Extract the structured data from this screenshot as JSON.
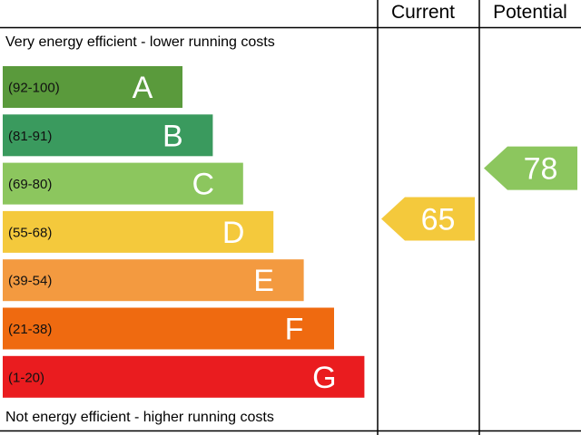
{
  "headers": {
    "current": "Current",
    "potential": "Potential"
  },
  "captions": {
    "top": "Very energy efficient - lower running costs",
    "bottom": "Not energy efficient - higher running costs"
  },
  "chart_data": {
    "type": "bar",
    "bands": [
      {
        "letter": "A",
        "range": "(92-100)",
        "min": 92,
        "max": 100,
        "color": "#5a9a3c"
      },
      {
        "letter": "B",
        "range": "(81-91)",
        "min": 81,
        "max": 91,
        "color": "#3a9a5e"
      },
      {
        "letter": "C",
        "range": "(69-80)",
        "min": 69,
        "max": 80,
        "color": "#8cc65e"
      },
      {
        "letter": "D",
        "range": "(55-68)",
        "min": 55,
        "max": 68,
        "color": "#f4c93c"
      },
      {
        "letter": "E",
        "range": "(39-54)",
        "min": 39,
        "max": 54,
        "color": "#f39a40"
      },
      {
        "letter": "F",
        "range": "(21-38)",
        "min": 21,
        "max": 38,
        "color": "#ef6a10"
      },
      {
        "letter": "G",
        "range": "(1-20)",
        "min": 1,
        "max": 20,
        "color": "#ea1c1f"
      }
    ],
    "current": {
      "value": 65,
      "band": "D",
      "color": "#f4c93c"
    },
    "potential": {
      "value": 78,
      "band": "C",
      "color": "#8cc65e"
    }
  }
}
